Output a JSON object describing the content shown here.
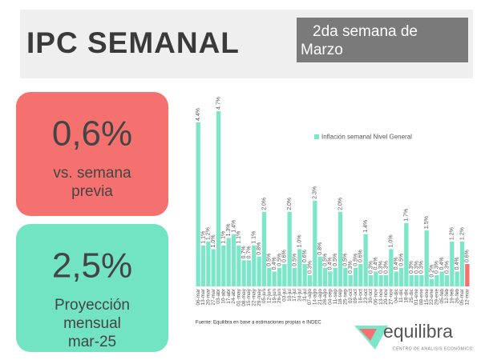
{
  "header": {
    "title": "IPC SEMANAL",
    "period_lines": [
      "2da semana de",
      "Marzo"
    ]
  },
  "cards": [
    {
      "value": "0,6%",
      "lines": [
        "vs. semana",
        "previa"
      ],
      "color": "#f4716f"
    },
    {
      "value": "2,5%",
      "lines": [
        "Proyección",
        "mensual",
        "mar-25"
      ],
      "color": "#72e3c3"
    }
  ],
  "chart_data": {
    "type": "bar",
    "categories": [
      "06-mar",
      "13-mar",
      "20-mar",
      "27-mar",
      "03-abr",
      "10-abr",
      "17-abr",
      "24-abr",
      "01-may",
      "08-may",
      "15-may",
      "22-may",
      "29-may",
      "05-jun",
      "12-jun",
      "19-jun",
      "26-jun",
      "03-jul",
      "10-jul",
      "17-jul",
      "24-jul",
      "31-jul",
      "07-ago",
      "14-ago",
      "21-ago",
      "28-ago",
      "04-sep",
      "11-sep",
      "18-sep",
      "25-sep",
      "02-oct",
      "09-oct",
      "16-oct",
      "23-oct",
      "30-oct",
      "06-nov",
      "13-nov",
      "20-nov",
      "27-nov",
      "04-dic",
      "11-dic",
      "18-dic",
      "25-dic",
      "01-ene",
      "08-ene",
      "15-ene",
      "22-ene",
      "29-ene",
      "05-feb",
      "12-feb",
      "19-feb",
      "26-feb",
      "05-mar",
      "12-mar"
    ],
    "series": [
      {
        "name": "Inflación semanal Nivel General",
        "color": "#7de6c9",
        "values": [
          4.4,
          1.1,
          1.2,
          1.0,
          4.7,
          1.1,
          1.3,
          1.4,
          1.1,
          0.7,
          0.7,
          1.1,
          0.8,
          2.0,
          0.5,
          0.4,
          0.5,
          0.6,
          2.0,
          0.5,
          1.0,
          0.6,
          0.3,
          2.3,
          0.8,
          0.5,
          0.4,
          0.5,
          2.0,
          0.5,
          0.3,
          0.5,
          0.6,
          1.4,
          0.3,
          0.4,
          0.3,
          0.3,
          1.0,
          0.4,
          0.5,
          1.7,
          0.3,
          0.3,
          0.3,
          1.5,
          0.2,
          0.3,
          0.4,
          0.3,
          1.2,
          0.4,
          1.2,
          0.6
        ],
        "value_labels": [
          "4.4%",
          "1.1%",
          "1.2%",
          "1.0%",
          "4.7%",
          "1.1%",
          "1.3%",
          "1.4%",
          "1.1%",
          "0.7%",
          "0.7%",
          "1.1%",
          "0.8%",
          "2.0%",
          "0.5%",
          "0.4%",
          "0.5%",
          "0.6%",
          "2.0%",
          "0.5%",
          "1.0%",
          "0.6%",
          "0.3%",
          "2.3%",
          "0.8%",
          "0.5%",
          "0.4%",
          "0.5%",
          "2.0%",
          "0.5%",
          "0.3%",
          "0.5%",
          "0.6%",
          "1.4%",
          "0.3%",
          "0.4%",
          "0.3%",
          "0.3%",
          "1.0%",
          "0.4%",
          "0.5%",
          "1.7%",
          "0.3%",
          "0.3%",
          "0.3%",
          "1.5%",
          "0.2%",
          "0.3%",
          "0.4%",
          "0.3%",
          "1.2%",
          "0.4%",
          "1.2%",
          "0.6%"
        ]
      }
    ],
    "highlight_color": "#f4716f",
    "ylim": [
      0,
      5
    ],
    "source": "Fuente: Equilibra en base a estimaciones propias e INDEC"
  },
  "logo": {
    "name": "equilibra",
    "tagline": "CENTRO DE ANÁLISIS ECONÓMICO"
  }
}
